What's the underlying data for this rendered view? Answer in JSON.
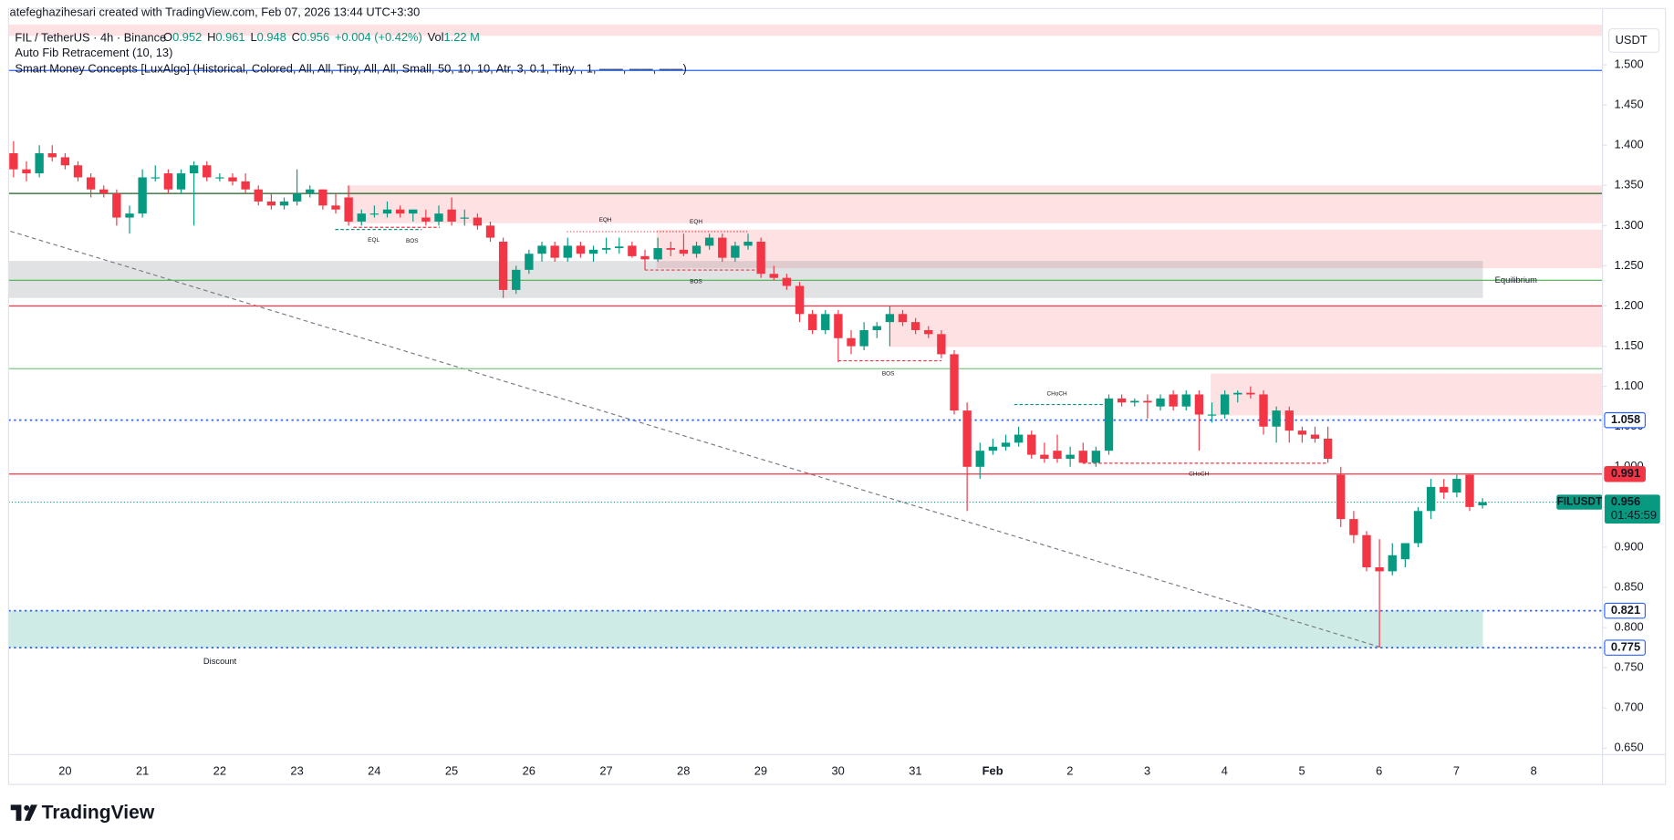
{
  "watermark": "atefeghazihesari created with TradingView.com, Feb 07, 2026 13:44 UTC+3:30",
  "symbol": "FIL / TetherUS · 4h · Binance",
  "ohlc_labels": [
    "O",
    "H",
    "L",
    "C"
  ],
  "change": "+0.004 (+0.42%)",
  "volume_label": "Vol",
  "volume": "1.22 M",
  "indicators": [
    "Auto Fib Retracement (10, 13)",
    "Smart Money Concepts [LuxAlgo] (Historical, Colored, All, All, Tiny, All, All, Small, 50, 10, 10, Atr, 3, 0.1, Tiny, , 1, ——, ——, ——)"
  ],
  "currency": "USDT",
  "logo": "TradingView",
  "chart_data": {
    "type": "candlestick",
    "up_color": "#089981",
    "down_color": "#f23645",
    "ohlc": [
      [
        1.39,
        1.405,
        1.36,
        1.37
      ],
      [
        1.37,
        1.38,
        1.355,
        1.365
      ],
      [
        1.365,
        1.4,
        1.36,
        1.39
      ],
      [
        1.39,
        1.4,
        1.38,
        1.385
      ],
      [
        1.385,
        1.39,
        1.37,
        1.375
      ],
      [
        1.375,
        1.38,
        1.355,
        1.36
      ],
      [
        1.36,
        1.365,
        1.335,
        1.345
      ],
      [
        1.345,
        1.35,
        1.335,
        1.34
      ],
      [
        1.34,
        1.345,
        1.3,
        1.31
      ],
      [
        1.31,
        1.325,
        1.29,
        1.315
      ],
      [
        1.315,
        1.37,
        1.31,
        1.36
      ],
      [
        1.36,
        1.375,
        1.355,
        1.36
      ],
      [
        1.365,
        1.37,
        1.34,
        1.345
      ],
      [
        1.345,
        1.37,
        1.34,
        1.365
      ],
      [
        1.365,
        1.38,
        1.3,
        1.375
      ],
      [
        1.375,
        1.38,
        1.355,
        1.36
      ],
      [
        1.36,
        1.365,
        1.355,
        1.36
      ],
      [
        1.36,
        1.365,
        1.35,
        1.355
      ],
      [
        1.355,
        1.365,
        1.34,
        1.345
      ],
      [
        1.345,
        1.35,
        1.325,
        1.33
      ],
      [
        1.33,
        1.34,
        1.32,
        1.325
      ],
      [
        1.325,
        1.335,
        1.32,
        1.33
      ],
      [
        1.33,
        1.37,
        1.325,
        1.34
      ],
      [
        1.34,
        1.35,
        1.335,
        1.345
      ],
      [
        1.345,
        1.345,
        1.32,
        1.325
      ],
      [
        1.325,
        1.34,
        1.315,
        1.32
      ],
      [
        1.335,
        1.35,
        1.3,
        1.305
      ],
      [
        1.305,
        1.32,
        1.3,
        1.315
      ],
      [
        1.315,
        1.325,
        1.31,
        1.315
      ],
      [
        1.315,
        1.33,
        1.31,
        1.32
      ],
      [
        1.32,
        1.325,
        1.31,
        1.315
      ],
      [
        1.315,
        1.32,
        1.305,
        1.32
      ],
      [
        1.31,
        1.32,
        1.3,
        1.305
      ],
      [
        1.305,
        1.325,
        1.3,
        1.315
      ],
      [
        1.32,
        1.335,
        1.3,
        1.305
      ],
      [
        1.31,
        1.32,
        1.3,
        1.31
      ],
      [
        1.31,
        1.315,
        1.295,
        1.3
      ],
      [
        1.3,
        1.305,
        1.28,
        1.285
      ],
      [
        1.28,
        1.285,
        1.21,
        1.22
      ],
      [
        1.22,
        1.25,
        1.215,
        1.245
      ],
      [
        1.245,
        1.27,
        1.24,
        1.265
      ],
      [
        1.265,
        1.28,
        1.255,
        1.275
      ],
      [
        1.275,
        1.28,
        1.255,
        1.26
      ],
      [
        1.26,
        1.285,
        1.255,
        1.275
      ],
      [
        1.275,
        1.28,
        1.26,
        1.265
      ],
      [
        1.265,
        1.275,
        1.255,
        1.27
      ],
      [
        1.27,
        1.285,
        1.265,
        1.272
      ],
      [
        1.272,
        1.285,
        1.265,
        1.274
      ],
      [
        1.275,
        1.28,
        1.26,
        1.262
      ],
      [
        1.262,
        1.27,
        1.245,
        1.258
      ],
      [
        1.258,
        1.285,
        1.255,
        1.272
      ],
      [
        1.272,
        1.28,
        1.262,
        1.27
      ],
      [
        1.27,
        1.29,
        1.262,
        1.265
      ],
      [
        1.265,
        1.28,
        1.26,
        1.275
      ],
      [
        1.275,
        1.29,
        1.27,
        1.285
      ],
      [
        1.285,
        1.29,
        1.255,
        1.26
      ],
      [
        1.26,
        1.28,
        1.255,
        1.275
      ],
      [
        1.275,
        1.29,
        1.27,
        1.28
      ],
      [
        1.28,
        1.285,
        1.235,
        1.24
      ],
      [
        1.24,
        1.25,
        1.232,
        1.235
      ],
      [
        1.235,
        1.24,
        1.22,
        1.225
      ],
      [
        1.225,
        1.23,
        1.18,
        1.19
      ],
      [
        1.19,
        1.195,
        1.165,
        1.17
      ],
      [
        1.17,
        1.195,
        1.165,
        1.19
      ],
      [
        1.19,
        1.195,
        1.13,
        1.16
      ],
      [
        1.16,
        1.17,
        1.14,
        1.15
      ],
      [
        1.15,
        1.18,
        1.145,
        1.17
      ],
      [
        1.17,
        1.18,
        1.16,
        1.175
      ],
      [
        1.18,
        1.2,
        1.15,
        1.19
      ],
      [
        1.19,
        1.195,
        1.175,
        1.18
      ],
      [
        1.18,
        1.185,
        1.165,
        1.17
      ],
      [
        1.17,
        1.175,
        1.16,
        1.165
      ],
      [
        1.165,
        1.17,
        1.135,
        1.14
      ],
      [
        1.14,
        1.145,
        1.065,
        1.07
      ],
      [
        1.07,
        1.08,
        0.945,
        1.0
      ],
      [
        1.0,
        1.03,
        0.985,
        1.02
      ],
      [
        1.02,
        1.035,
        1.015,
        1.025
      ],
      [
        1.025,
        1.04,
        1.02,
        1.03
      ],
      [
        1.03,
        1.05,
        1.025,
        1.04
      ],
      [
        1.04,
        1.045,
        1.01,
        1.015
      ],
      [
        1.015,
        1.03,
        1.005,
        1.01
      ],
      [
        1.02,
        1.04,
        1.005,
        1.01
      ],
      [
        1.01,
        1.025,
        1.0,
        1.015
      ],
      [
        1.02,
        1.03,
        1.005,
        1.005
      ],
      [
        1.005,
        1.025,
        1.0,
        1.02
      ],
      [
        1.02,
        1.09,
        1.015,
        1.085
      ],
      [
        1.085,
        1.09,
        1.075,
        1.08
      ],
      [
        1.08,
        1.085,
        1.075,
        1.082
      ],
      [
        1.082,
        1.09,
        1.06,
        1.08
      ],
      [
        1.075,
        1.09,
        1.07,
        1.085
      ],
      [
        1.09,
        1.095,
        1.07,
        1.075
      ],
      [
        1.075,
        1.095,
        1.07,
        1.09
      ],
      [
        1.09,
        1.095,
        1.02,
        1.065
      ],
      [
        1.065,
        1.08,
        1.055,
        1.065
      ],
      [
        1.065,
        1.095,
        1.06,
        1.09
      ],
      [
        1.09,
        1.095,
        1.08,
        1.092
      ],
      [
        1.092,
        1.1,
        1.085,
        1.09
      ],
      [
        1.09,
        1.095,
        1.04,
        1.05
      ],
      [
        1.05,
        1.075,
        1.03,
        1.07
      ],
      [
        1.07,
        1.075,
        1.03,
        1.045
      ],
      [
        1.045,
        1.05,
        1.03,
        1.04
      ],
      [
        1.04,
        1.05,
        1.03,
        1.035
      ],
      [
        1.035,
        1.05,
        1.005,
        1.01
      ],
      [
        0.99,
        1.0,
        0.925,
        0.935
      ],
      [
        0.935,
        0.945,
        0.905,
        0.915
      ],
      [
        0.915,
        0.92,
        0.87,
        0.875
      ],
      [
        0.875,
        0.91,
        0.775,
        0.87
      ],
      [
        0.87,
        0.905,
        0.865,
        0.89
      ],
      [
        0.885,
        0.905,
        0.875,
        0.905
      ],
      [
        0.905,
        0.95,
        0.9,
        0.945
      ],
      [
        0.945,
        0.985,
        0.935,
        0.975
      ],
      [
        0.975,
        0.985,
        0.96,
        0.968
      ],
      [
        0.968,
        0.99,
        0.962,
        0.985
      ],
      [
        0.99,
        0.99,
        0.945,
        0.95
      ],
      [
        0.952,
        0.961,
        0.948,
        0.956
      ]
    ],
    "x_labels": [
      "20",
      "21",
      "22",
      "23",
      "24",
      "25",
      "26",
      "27",
      "28",
      "29",
      "30",
      "31",
      "Feb",
      "2",
      "3",
      "4",
      "5",
      "6",
      "7",
      "8"
    ],
    "ylim": [
      0.642,
      1.57
    ],
    "yticks": [
      {
        "value": 1.5,
        "label": "1.500"
      },
      {
        "value": 1.45,
        "label": "1.450"
      },
      {
        "value": 1.4,
        "label": "1.400"
      },
      {
        "value": 1.35,
        "label": "1.350"
      },
      {
        "value": 1.3,
        "label": "1.300"
      },
      {
        "value": 1.25,
        "label": "1.250"
      },
      {
        "value": 1.2,
        "label": "1.200"
      },
      {
        "value": 1.15,
        "label": "1.150"
      },
      {
        "value": 1.1,
        "label": "1.100"
      },
      {
        "value": 1.05,
        "label": "1.050"
      },
      {
        "value": 1.0,
        "label": "1.000"
      },
      {
        "value": 0.95,
        "label": "0.950"
      },
      {
        "value": 0.9,
        "label": "0.900"
      },
      {
        "value": 0.85,
        "label": "0.850"
      },
      {
        "value": 0.8,
        "label": "0.800"
      },
      {
        "value": 0.75,
        "label": "0.750"
      },
      {
        "value": 0.7,
        "label": "0.700"
      },
      {
        "value": 0.65,
        "label": "0.650"
      }
    ],
    "grid": false,
    "zones": [
      {
        "from": 1.55,
        "to": 1.536,
        "color": "#f23645"
      },
      {
        "from": 1.35,
        "to": 1.303,
        "color": "#f23645"
      },
      {
        "from": 1.295,
        "to": 1.247,
        "color": "#f23645"
      },
      {
        "from": 1.256,
        "to": 1.21,
        "color": "#787b86"
      },
      {
        "from": 1.199,
        "to": 1.149,
        "color": "#f23645"
      },
      {
        "from": 1.116,
        "to": 1.064,
        "color": "#f23645"
      },
      {
        "from": 0.821,
        "to": 0.775,
        "color": "#089981"
      }
    ],
    "levels": [
      {
        "value": 1.493,
        "color": "#2962ff",
        "style": "solid",
        "badge": false
      },
      {
        "value": 1.34,
        "color": "#1b5e20",
        "style": "solid",
        "badge": false
      },
      {
        "value": 1.232,
        "color": "#4caf50",
        "style": "solid",
        "badge": false
      },
      {
        "value": 1.2,
        "color": "#f23645",
        "style": "solid",
        "badge": false
      },
      {
        "value": 1.122,
        "color": "#81c784",
        "style": "solid",
        "badge": false
      },
      {
        "value": 1.058,
        "color": "#2962ff",
        "style": "dotted",
        "badge": true
      },
      {
        "value": 0.991,
        "color": "#f23645",
        "style": "solid",
        "badge": true
      },
      {
        "value": 0.821,
        "color": "#2962ff",
        "style": "dotted",
        "badge": true
      },
      {
        "value": 0.775,
        "color": "#2962ff",
        "style": "dotted",
        "badge": true
      }
    ],
    "last_price": {
      "symbol": "FILUSDT",
      "countdown": "01:45:59"
    },
    "trendline": [
      1.293,
      0.776
    ],
    "annotations": [
      {
        "text": "EQL",
        "color": "#089981"
      },
      {
        "text": "BOS",
        "color": "#f23645"
      },
      {
        "text": "EQH",
        "color": "#f23645"
      },
      {
        "text": "EQH",
        "color": "#f23645"
      },
      {
        "text": "BOS",
        "color": "#f23645"
      },
      {
        "text": "BOS",
        "color": "#f23645"
      },
      {
        "text": "CHoCH",
        "color": "#089981"
      },
      {
        "text": "CHoCH",
        "color": "#f7a9b0"
      },
      {
        "text": "Equilibrium",
        "color": "#9598a1"
      },
      {
        "text": "Discount",
        "color": "#089981"
      }
    ]
  }
}
